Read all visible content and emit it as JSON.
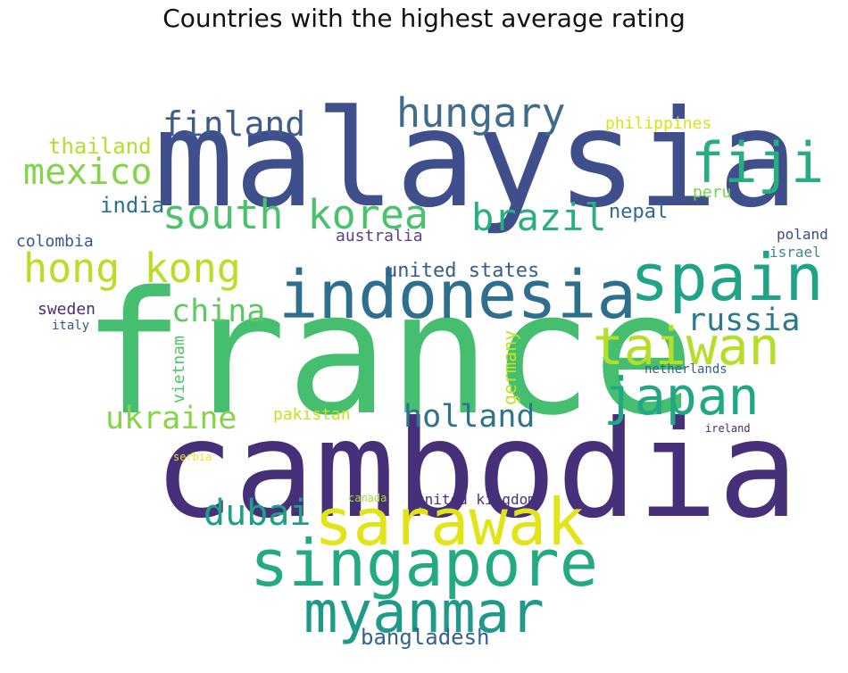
{
  "chart_data": {
    "type": "wordcloud",
    "title": "Countries with the highest average rating",
    "words": [
      {
        "text": "malaysia",
        "color": "#3f4f8c"
      },
      {
        "text": "france",
        "color": "#45bf6f"
      },
      {
        "text": "cambodia",
        "color": "#46307a"
      },
      {
        "text": "indonesia",
        "color": "#2f6f8e"
      },
      {
        "text": "spain",
        "color": "#20a386"
      },
      {
        "text": "singapore",
        "color": "#24aa83"
      },
      {
        "text": "sarawak",
        "color": "#e2e418"
      },
      {
        "text": "myanmar",
        "color": "#1f9a8a"
      },
      {
        "text": "south korea",
        "color": "#4ac16d"
      },
      {
        "text": "taiwan",
        "color": "#b5de2b"
      },
      {
        "text": "japan",
        "color": "#22a785"
      },
      {
        "text": "fiji",
        "color": "#27ad81"
      },
      {
        "text": "hong kong",
        "color": "#b8de29"
      },
      {
        "text": "hungary",
        "color": "#3e6c8a"
      },
      {
        "text": "finland",
        "color": "#3d5b8c"
      },
      {
        "text": "mexico",
        "color": "#84d44b"
      },
      {
        "text": "brazil",
        "color": "#29ae80"
      },
      {
        "text": "ukraine",
        "color": "#86d549"
      },
      {
        "text": "holland",
        "color": "#2c738e"
      },
      {
        "text": "dubai",
        "color": "#1f9e89"
      },
      {
        "text": "russia",
        "color": "#2a788e"
      },
      {
        "text": "china",
        "color": "#5ec962"
      },
      {
        "text": "thailand",
        "color": "#b5de2b"
      },
      {
        "text": "bangladesh",
        "color": "#33638d"
      },
      {
        "text": "united states",
        "color": "#365c8d"
      },
      {
        "text": "india",
        "color": "#2d708e"
      },
      {
        "text": "nepal",
        "color": "#31688e"
      },
      {
        "text": "philippines",
        "color": "#d8e219"
      },
      {
        "text": "colombia",
        "color": "#38588c"
      },
      {
        "text": "australia",
        "color": "#5a3f8a"
      },
      {
        "text": "sweden",
        "color": "#4b2d75"
      },
      {
        "text": "germany",
        "color": "#c2df23"
      },
      {
        "text": "vietnam",
        "color": "#4fc46a"
      },
      {
        "text": "pakistan",
        "color": "#c8e020"
      },
      {
        "text": "peru",
        "color": "#7ad151"
      },
      {
        "text": "united kingdom",
        "color": "#47327a"
      },
      {
        "text": "poland",
        "color": "#3e4989"
      },
      {
        "text": "israel",
        "color": "#3b8a8c"
      },
      {
        "text": "netherlands",
        "color": "#35608d"
      },
      {
        "text": "italy",
        "color": "#3a548c"
      },
      {
        "text": "ireland",
        "color": "#482878"
      },
      {
        "text": "serbia",
        "color": "#f1e51d"
      },
      {
        "text": "canada",
        "color": "#a8db34"
      }
    ]
  }
}
